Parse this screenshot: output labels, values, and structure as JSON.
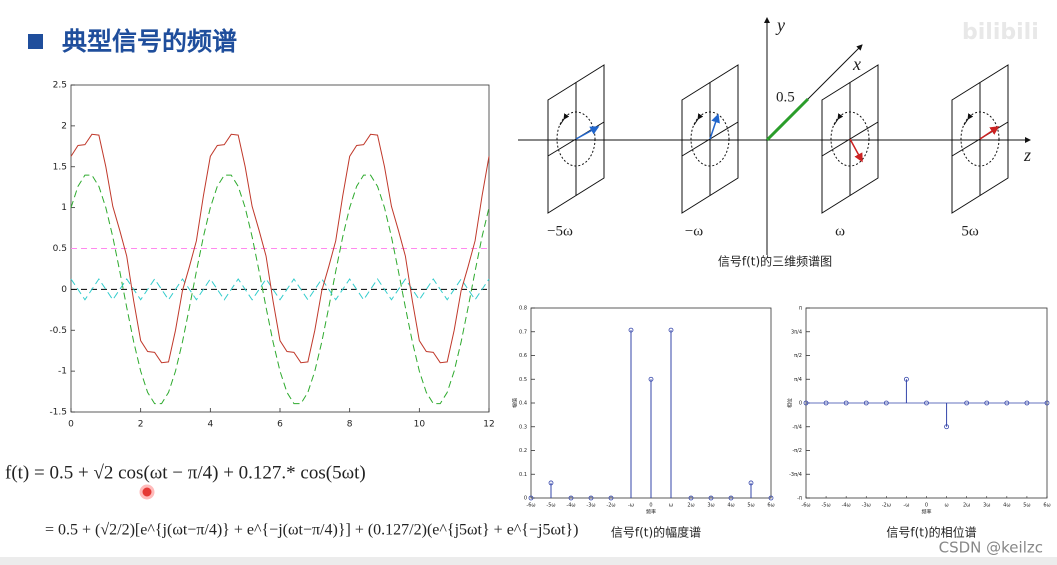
{
  "header": {
    "title": "典型信号的频谱"
  },
  "watermarks": [
    "bilibili",
    "CSDN @keilzc"
  ],
  "formula": {
    "line1": "f(t) = 0.5 + √2 cos(ωt − π/4) + 0.127.* cos(5ωt)",
    "line2": "= 0.5 + (√2/2)[e^{j(ωt−π/4)} + e^{−j(ωt−π/4)}] + (0.127/2)(e^{j5ωt} + e^{−j5ωt})"
  },
  "diagram": {
    "axis_labels": [
      "y",
      "x",
      "z"
    ],
    "dc_label": "0.5",
    "frequency_labels": [
      "−5ω",
      "−ω",
      "ω",
      "5ω"
    ],
    "caption": "信号f(t)的三维频谱图"
  },
  "chart_data": [
    {
      "type": "line",
      "x": [
        0,
        0.2,
        0.4,
        0.6,
        0.8,
        1,
        1.2,
        1.4,
        1.6,
        1.8,
        2,
        2.2,
        2.4,
        2.6,
        2.8,
        3,
        3.2,
        3.4,
        3.6,
        3.8,
        4,
        4.2,
        4.4,
        4.6,
        4.8,
        5,
        5.2,
        5.4,
        5.6,
        5.8,
        6,
        6.2,
        6.4,
        6.6,
        6.8,
        7,
        7.2,
        7.4,
        7.6,
        7.8,
        8,
        8.2,
        8.4,
        8.6,
        8.8,
        9,
        9.2,
        9.4,
        9.6,
        9.8,
        10,
        10.2,
        10.4,
        10.6,
        10.8,
        11,
        11.2,
        11.4,
        11.6,
        11.8,
        12
      ],
      "xlim": [
        0,
        12
      ],
      "xticks": [
        0,
        2,
        4,
        6,
        8,
        10,
        12
      ],
      "ylim": [
        -1.5,
        2.5
      ],
      "yticks": [
        -1.5,
        -1,
        -0.5,
        0,
        0.5,
        1,
        1.5,
        2,
        2.5
      ],
      "reference_lines": [
        {
          "value": 0.5,
          "color": "#ff88ee"
        },
        {
          "value": 0,
          "color": "#000000"
        }
      ],
      "series": [
        {
          "color": "#2eaa2e",
          "dashed": true,
          "values": [
            1.0,
            1.26,
            1.397,
            1.397,
            1.26,
            1.0,
            0.642,
            0.221,
            -0.221,
            -0.642,
            -1.0,
            -1.26,
            -1.397,
            -1.397,
            -1.26,
            -1.0,
            -0.642,
            -0.221,
            0.221,
            0.642,
            1.0,
            1.26,
            1.397,
            1.397,
            1.26,
            1.0,
            0.642,
            0.221,
            -0.221,
            -0.642,
            -1.0,
            -1.26,
            -1.397,
            -1.397,
            -1.26,
            -1.0,
            -0.642,
            -0.221,
            0.221,
            0.642,
            1.0,
            1.26,
            1.397,
            1.397,
            1.26,
            1.0,
            0.642,
            0.221,
            -0.221,
            -0.642,
            -1.0,
            -1.26,
            -1.397,
            -1.397,
            -1.26,
            -1.0,
            -0.642,
            -0.221,
            0.221,
            0.642,
            1.0
          ]
        },
        {
          "color": "#33cccc",
          "dashed": true,
          "values": [
            0.127,
            0,
            -0.127,
            0,
            0.127,
            0,
            -0.127,
            0,
            0.127,
            0,
            -0.127,
            0,
            0.127,
            0,
            -0.127,
            0,
            0.127,
            0,
            -0.127,
            0,
            0.127,
            0,
            -0.127,
            0,
            0.127,
            0,
            -0.127,
            0,
            0.127,
            0,
            -0.127,
            0,
            0.127,
            0,
            -0.127,
            0,
            0.127,
            0,
            -0.127,
            0,
            0.127,
            0,
            -0.127,
            0,
            0.127,
            0,
            -0.127,
            0,
            0.127,
            0,
            -0.127,
            0,
            0.127,
            0,
            -0.127,
            0,
            0.127,
            0,
            -0.127,
            0,
            0.127
          ]
        },
        {
          "color": "#c0392b",
          "dashed": false,
          "values": [
            1.627,
            1.76,
            1.77,
            1.897,
            1.887,
            1.5,
            1.015,
            0.721,
            0.406,
            -0.142,
            -0.627,
            -0.76,
            -0.77,
            -0.897,
            -0.887,
            -0.5,
            -0.015,
            0.279,
            0.594,
            1.142,
            1.627,
            1.76,
            1.77,
            1.897,
            1.887,
            1.5,
            1.015,
            0.721,
            0.406,
            -0.142,
            -0.627,
            -0.76,
            -0.77,
            -0.897,
            -0.887,
            -0.5,
            -0.015,
            0.279,
            0.594,
            1.142,
            1.627,
            1.76,
            1.77,
            1.897,
            1.887,
            1.5,
            1.015,
            0.721,
            0.406,
            -0.142,
            -0.627,
            -0.76,
            -0.77,
            -0.897,
            -0.887,
            -0.5,
            -0.015,
            0.279,
            0.594,
            1.142,
            1.627
          ]
        }
      ]
    },
    {
      "type": "stem",
      "title": "信号f(t)的幅度谱",
      "xlabel": "频率",
      "ylabel": "幅值",
      "categories": [
        "-6ω",
        "-5ω",
        "-4ω",
        "-3ω",
        "-2ω",
        "-ω",
        "0",
        "ω",
        "2ω",
        "3ω",
        "4ω",
        "5ω",
        "6ω"
      ],
      "values": [
        0,
        0.0635,
        0,
        0,
        0,
        0.707,
        0.5,
        0.707,
        0,
        0,
        0,
        0.0635,
        0
      ],
      "color": "#3344aa",
      "ylim": [
        0,
        0.8
      ],
      "yticks": [
        0,
        0.1,
        0.2,
        0.3,
        0.4,
        0.5,
        0.6,
        0.7,
        0.8
      ]
    },
    {
      "type": "stem",
      "title": "信号f(t)的相位谱",
      "xlabel": "频率",
      "ylabel": "相位",
      "categories": [
        "-6ω",
        "-5ω",
        "-4ω",
        "-3ω",
        "-2ω",
        "-ω",
        "0",
        "ω",
        "2ω",
        "3ω",
        "4ω",
        "5ω",
        "6ω"
      ],
      "values": [
        0,
        0,
        0,
        0,
        0,
        0.7854,
        0,
        -0.7854,
        0,
        0,
        0,
        0,
        0
      ],
      "color": "#3344aa",
      "ylim": [
        -3.1416,
        3.1416
      ],
      "yticks": [
        {
          "value": -3.1416,
          "label": "-π"
        },
        {
          "value": -2.3562,
          "label": "-3π/4"
        },
        {
          "value": -1.5708,
          "label": "-π/2"
        },
        {
          "value": -0.7854,
          "label": "-π/4"
        },
        0,
        {
          "value": 0.7854,
          "label": "π/4"
        },
        {
          "value": 1.5708,
          "label": "π/2"
        },
        {
          "value": 2.3562,
          "label": "3π/4"
        },
        {
          "value": 3.1416,
          "label": "π"
        }
      ]
    }
  ]
}
